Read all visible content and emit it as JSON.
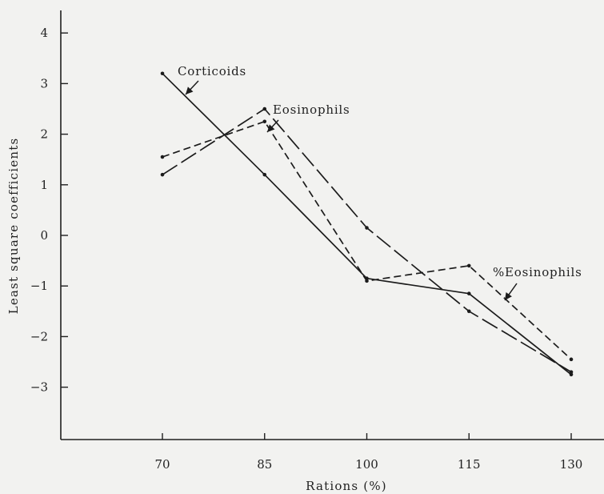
{
  "chart_data": {
    "type": "line",
    "xlabel": "Rations (%)",
    "ylabel": "Least square coefficients",
    "x": [
      70,
      85,
      100,
      115,
      130
    ],
    "xlim": [
      62,
      130
    ],
    "ylim": [
      -4,
      4.3
    ],
    "x_ticks": [
      70,
      85,
      100,
      115,
      130
    ],
    "y_ticks": [
      4,
      3,
      2,
      1,
      0,
      -1,
      -2,
      -3
    ],
    "x_tick_labels": [
      "70",
      "85",
      "100",
      "115",
      "130"
    ],
    "y_tick_labels": [
      "4",
      "3",
      "2",
      "1",
      "0",
      "−1",
      "−2",
      "−3"
    ],
    "grid": false,
    "legend": "none",
    "series": [
      {
        "name": "Corticoids",
        "style": "solid",
        "values": [
          3.2,
          1.2,
          -0.85,
          -1.15,
          -2.75
        ]
      },
      {
        "name": "Eosinophils",
        "style": "long-dash",
        "values": [
          1.2,
          2.5,
          0.15,
          -1.5,
          -2.7
        ]
      },
      {
        "name": "%Eosinophils",
        "style": "short-dash",
        "values": [
          1.55,
          2.25,
          -0.9,
          -0.6,
          -2.45
        ]
      }
    ],
    "annotations": [
      {
        "text": "Corticoids",
        "series": 0,
        "point": 0
      },
      {
        "text": "Eosinophils",
        "series": 1,
        "point": 1
      },
      {
        "text": "%Eosinophils",
        "series": 2,
        "point": 3
      }
    ]
  }
}
